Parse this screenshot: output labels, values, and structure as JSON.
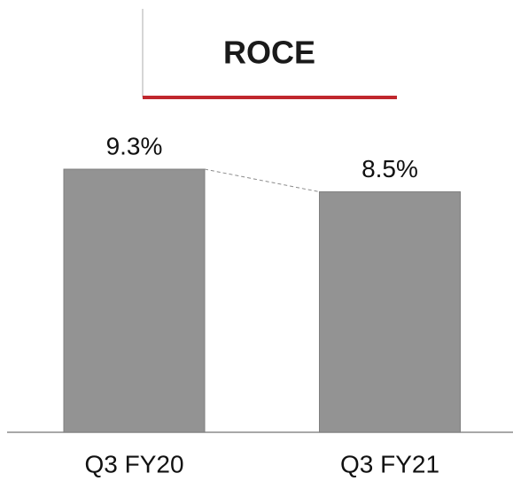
{
  "chart_data": {
    "type": "bar",
    "title": "ROCE",
    "categories": [
      "Q3 FY20",
      "Q3 FY21"
    ],
    "values": [
      9.3,
      8.5
    ],
    "value_labels": [
      "9.3%",
      "8.5%"
    ],
    "color": "#939393"
  }
}
